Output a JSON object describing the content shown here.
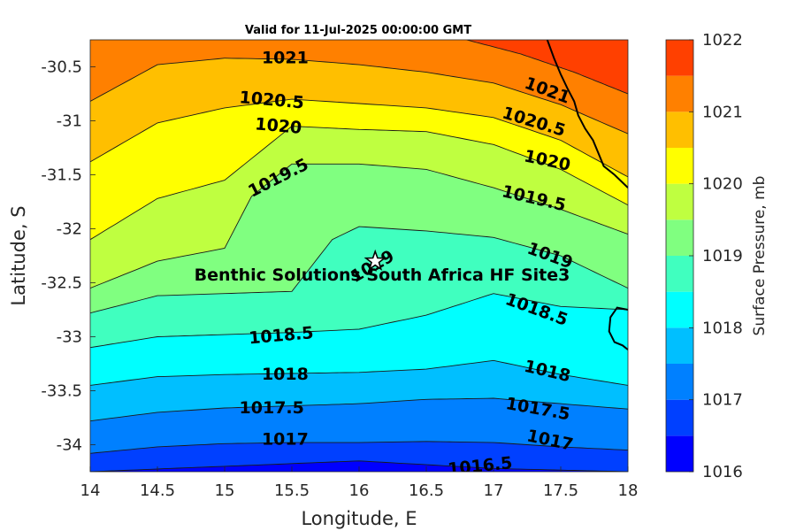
{
  "chart_data": {
    "type": "contour",
    "title": "Valid for 11-Jul-2025 00:00:00 GMT",
    "xlabel": "Longitude, E",
    "ylabel": "Latitude, S",
    "xlim": [
      14,
      18
    ],
    "ylim": [
      -34.25,
      -30.25
    ],
    "x_ticks": [
      14,
      14.5,
      15,
      15.5,
      16,
      16.5,
      17,
      17.5,
      18
    ],
    "y_ticks": [
      -30.5,
      -31,
      -31.5,
      -32,
      -32.5,
      -33,
      -33.5,
      -34
    ],
    "colorbar": {
      "label": "Surface Pressure, mb",
      "range": [
        1016,
        1022
      ],
      "ticks": [
        1016,
        1017,
        1018,
        1019,
        1020,
        1021,
        1022
      ],
      "levels": [
        1016,
        1016.5,
        1017,
        1017.5,
        1018,
        1018.5,
        1019,
        1019.5,
        1020,
        1020.5,
        1021,
        1021.5,
        1022
      ],
      "colors": [
        "#0000ff",
        "#0040ff",
        "#0080ff",
        "#00bfff",
        "#00ffff",
        "#40ffbf",
        "#80ff80",
        "#bfff40",
        "#ffff00",
        "#ffbf00",
        "#ff8000",
        "#ff4000"
      ]
    },
    "contour_lines": [
      {
        "level": 1016.5,
        "label": "1016.5",
        "lons": [
          14.0,
          15.0,
          16.0,
          17.0,
          18.0
        ],
        "lats": [
          -34.25,
          -34.2,
          -34.15,
          -34.22,
          -34.25
        ]
      },
      {
        "level": 1017,
        "label": "1017",
        "lons": [
          14.0,
          14.5,
          15.0,
          15.5,
          16.0,
          16.5,
          17.0,
          17.5,
          18.0
        ],
        "lats": [
          -34.08,
          -34.02,
          -33.99,
          -33.98,
          -33.98,
          -33.97,
          -33.98,
          -34.02,
          -34.05
        ]
      },
      {
        "level": 1017.5,
        "label": "1017.5",
        "lons": [
          14.0,
          14.5,
          15.0,
          15.5,
          16.0,
          16.5,
          17.0,
          17.5,
          18.0
        ],
        "lats": [
          -33.78,
          -33.7,
          -33.66,
          -33.64,
          -33.62,
          -33.58,
          -33.57,
          -33.62,
          -33.67
        ]
      },
      {
        "level": 1018,
        "label": "1018",
        "lons": [
          14.0,
          14.5,
          15.0,
          15.5,
          16.0,
          16.5,
          17.0,
          17.5,
          18.0
        ],
        "lats": [
          -33.45,
          -33.37,
          -33.35,
          -33.34,
          -33.33,
          -33.3,
          -33.22,
          -33.35,
          -33.45
        ]
      },
      {
        "level": 1018.5,
        "label": "1018.5",
        "lons": [
          14.0,
          14.5,
          15.0,
          15.5,
          16.0,
          16.5,
          17.0,
          17.5,
          18.0
        ],
        "lats": [
          -33.1,
          -33.0,
          -32.98,
          -32.96,
          -32.93,
          -32.8,
          -32.6,
          -32.72,
          -32.75
        ]
      },
      {
        "level": 1019,
        "label": "1019",
        "lons": [
          14.0,
          14.5,
          15.0,
          15.5,
          15.8,
          16.0,
          16.5,
          17.0,
          17.5,
          18.0
        ],
        "lats": [
          -32.78,
          -32.62,
          -32.6,
          -32.58,
          -32.1,
          -31.98,
          -32.02,
          -32.08,
          -32.25,
          -32.55
        ]
      },
      {
        "level": 1019.5,
        "label": "1019.5",
        "lons": [
          14.0,
          14.5,
          15.0,
          15.2,
          15.5,
          16.0,
          16.5,
          17.0,
          17.5,
          18.0
        ],
        "lats": [
          -32.55,
          -32.3,
          -32.18,
          -31.7,
          -31.4,
          -31.4,
          -31.45,
          -31.62,
          -31.82,
          -32.05
        ]
      },
      {
        "level": 1020,
        "label": "1020",
        "lons": [
          14.0,
          14.5,
          15.0,
          15.5,
          16.0,
          16.5,
          17.0,
          17.5,
          18.0
        ],
        "lats": [
          -32.1,
          -31.72,
          -31.55,
          -31.05,
          -31.08,
          -31.1,
          -31.22,
          -31.45,
          -31.78
        ]
      },
      {
        "level": 1020.5,
        "label": "1020.5",
        "lons": [
          14.0,
          14.5,
          15.0,
          15.5,
          16.0,
          16.5,
          17.0,
          17.5,
          18.0
        ],
        "lats": [
          -31.38,
          -31.02,
          -30.88,
          -30.8,
          -30.84,
          -30.88,
          -30.97,
          -31.18,
          -31.52
        ]
      },
      {
        "level": 1021,
        "label": "1021",
        "lons": [
          14.0,
          14.5,
          15.0,
          15.5,
          16.0,
          16.5,
          17.0,
          17.5,
          18.0
        ],
        "lats": [
          -30.82,
          -30.48,
          -30.42,
          -30.43,
          -30.48,
          -30.55,
          -30.65,
          -30.85,
          -31.12
        ]
      },
      {
        "level": 1021.5,
        "label": "",
        "lons": [
          16.8,
          17.2,
          17.6,
          18.0
        ],
        "lats": [
          -30.25,
          -30.38,
          -30.55,
          -30.75
        ]
      }
    ],
    "contour_labels": [
      {
        "text": "1021",
        "lon": 15.45,
        "lat": -30.42,
        "angle": 0
      },
      {
        "text": "1021",
        "lon": 17.4,
        "lat": -30.72,
        "angle": 20
      },
      {
        "text": "1020.5",
        "lon": 15.35,
        "lat": -30.81,
        "angle": 5
      },
      {
        "text": "1020.5",
        "lon": 17.3,
        "lat": -31.01,
        "angle": 17
      },
      {
        "text": "1020",
        "lon": 15.4,
        "lat": -31.05,
        "angle": 5
      },
      {
        "text": "1020",
        "lon": 17.4,
        "lat": -31.37,
        "angle": 12
      },
      {
        "text": "1019.5",
        "lon": 15.4,
        "lat": -31.53,
        "angle": -27
      },
      {
        "text": "1019.5",
        "lon": 17.3,
        "lat": -31.72,
        "angle": 13
      },
      {
        "text": "1019",
        "lon": 16.1,
        "lat": -32.35,
        "angle": -30
      },
      {
        "text": "1019",
        "lon": 17.42,
        "lat": -32.25,
        "angle": 20
      },
      {
        "text": "1018.5",
        "lon": 15.42,
        "lat": -32.99,
        "angle": -5
      },
      {
        "text": "1018.5",
        "lon": 17.32,
        "lat": -32.75,
        "angle": 20
      },
      {
        "text": "1018",
        "lon": 15.45,
        "lat": -33.35,
        "angle": 0
      },
      {
        "text": "1018",
        "lon": 17.4,
        "lat": -33.32,
        "angle": 13
      },
      {
        "text": "1017.5",
        "lon": 15.35,
        "lat": -33.66,
        "angle": 0
      },
      {
        "text": "1017.5",
        "lon": 17.33,
        "lat": -33.67,
        "angle": 10
      },
      {
        "text": "1017",
        "lon": 15.45,
        "lat": -33.95,
        "angle": 0
      },
      {
        "text": "1017",
        "lon": 17.42,
        "lat": -33.96,
        "angle": 12
      },
      {
        "text": "1016.5",
        "lon": 16.9,
        "lat": -34.2,
        "angle": -6
      }
    ],
    "coastline": {
      "lons": [
        17.4,
        17.45,
        17.5,
        17.55,
        17.6,
        17.63,
        17.68,
        17.74,
        17.78,
        17.82,
        17.9,
        18.0
      ],
      "lats": [
        -30.25,
        -30.42,
        -30.57,
        -30.7,
        -30.82,
        -30.95,
        -31.07,
        -31.18,
        -31.3,
        -31.42,
        -31.5,
        -31.62
      ]
    },
    "island": {
      "lons": [
        18.0,
        17.92,
        17.87,
        17.86,
        17.9,
        17.96,
        18.0
      ],
      "lats": [
        -32.75,
        -32.73,
        -32.82,
        -32.95,
        -33.05,
        -33.08,
        -33.12
      ]
    },
    "site": {
      "name": "Benthic Solutions South Africa HF Site3",
      "lon": 16.12,
      "lat": -32.3
    }
  }
}
